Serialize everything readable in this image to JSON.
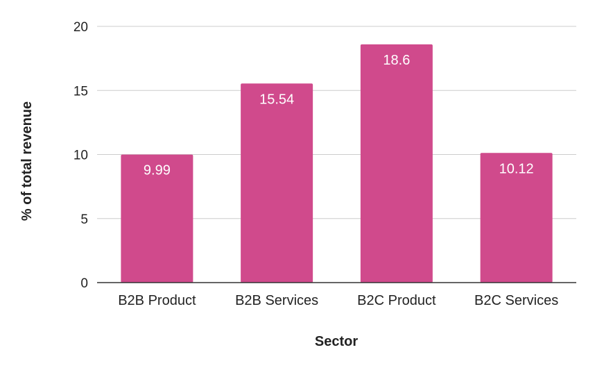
{
  "chart_data": {
    "type": "bar",
    "title": "",
    "xlabel": "Sector",
    "ylabel": "% of total revenue",
    "categories": [
      "B2B Product",
      "B2B Services",
      "B2C Product",
      "B2C Services"
    ],
    "values": [
      9.99,
      15.54,
      18.6,
      10.12
    ],
    "data_labels": [
      "9.99",
      "15.54",
      "18.6",
      "10.12"
    ],
    "ylim": [
      0,
      20
    ],
    "yticks": [
      0,
      5,
      10,
      15,
      20
    ],
    "grid": true,
    "legend": "none",
    "colors": {
      "bar": "#d04a8c",
      "grid": "#cccccc",
      "axis": "#333333"
    }
  }
}
